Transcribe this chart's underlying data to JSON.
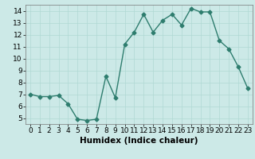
{
  "x": [
    0,
    1,
    2,
    3,
    4,
    5,
    6,
    7,
    8,
    9,
    10,
    11,
    12,
    13,
    14,
    15,
    16,
    17,
    18,
    19,
    20,
    21,
    22,
    23
  ],
  "y": [
    7.0,
    6.8,
    6.8,
    6.9,
    6.2,
    4.9,
    4.8,
    4.9,
    8.5,
    6.7,
    11.2,
    12.2,
    13.7,
    12.2,
    13.2,
    13.7,
    12.8,
    14.2,
    13.9,
    13.9,
    11.5,
    10.8,
    9.3,
    7.5
  ],
  "line_color": "#2e7d6e",
  "marker": "D",
  "marker_size": 2.5,
  "bg_color": "#cce9e7",
  "grid_color": "#b0d8d4",
  "xlabel": "Humidex (Indice chaleur)",
  "xlim": [
    -0.5,
    23.5
  ],
  "ylim": [
    4.5,
    14.5
  ],
  "yticks": [
    5,
    6,
    7,
    8,
    9,
    10,
    11,
    12,
    13,
    14
  ],
  "xticks": [
    0,
    1,
    2,
    3,
    4,
    5,
    6,
    7,
    8,
    9,
    10,
    11,
    12,
    13,
    14,
    15,
    16,
    17,
    18,
    19,
    20,
    21,
    22,
    23
  ],
  "xlabel_fontsize": 7.5,
  "tick_fontsize": 6.5
}
